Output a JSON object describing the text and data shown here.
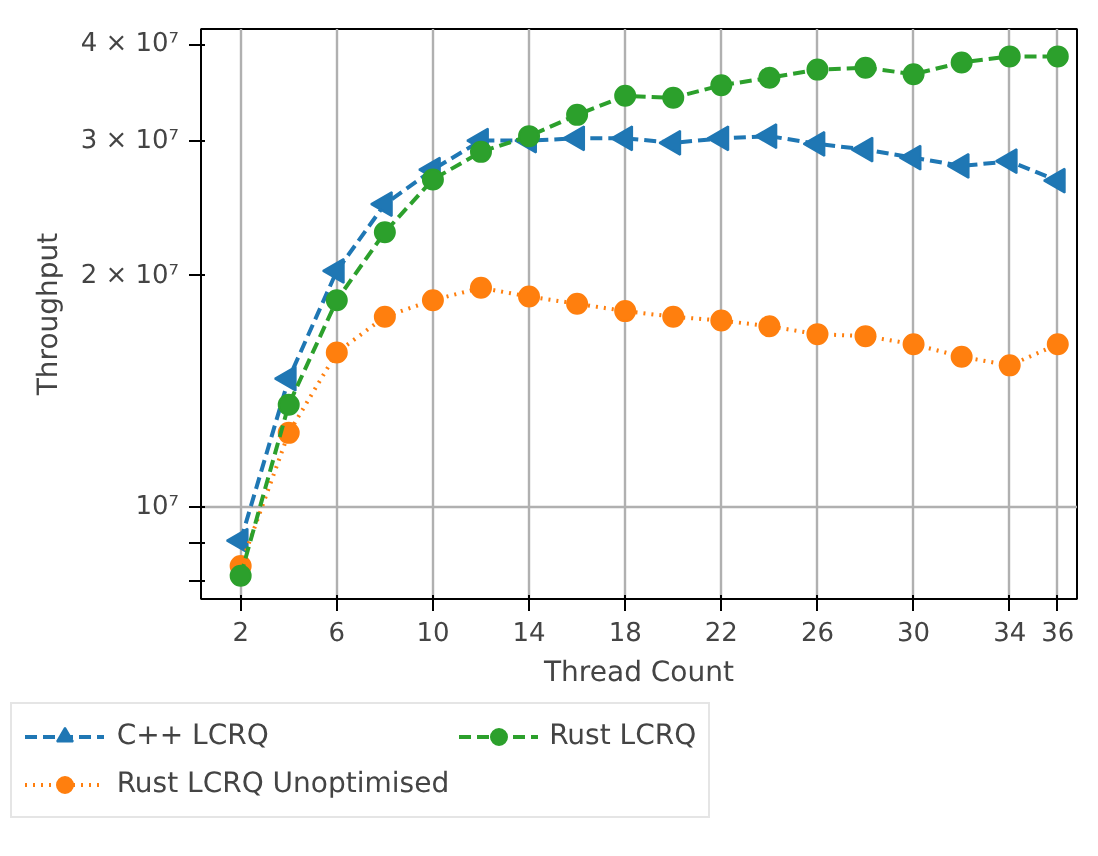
{
  "chart_data": {
    "type": "line",
    "xlabel": "Thread Count",
    "ylabel": "Throughput",
    "log": "y",
    "x": [
      2,
      4,
      6,
      8,
      10,
      12,
      14,
      16,
      18,
      20,
      22,
      24,
      26,
      28,
      30,
      32,
      34,
      36
    ],
    "xlim": [
      0.35,
      36.8
    ],
    "xticks": [
      2,
      6,
      10,
      14,
      18,
      22,
      26,
      30,
      34,
      36
    ],
    "ylim": [
      7600000,
      41900000
    ],
    "yticks": [
      {
        "value": 8000000,
        "label": null
      },
      {
        "value": 9000000,
        "label": null
      },
      {
        "value": 10000000,
        "label": "10⁷"
      },
      {
        "value": 20000000,
        "label": "2 × 10⁷"
      },
      {
        "value": 30000000,
        "label": "3 × 10⁷"
      },
      {
        "value": 40000000,
        "label": "4 × 10⁷"
      }
    ],
    "grid": true,
    "legend": "bottom",
    "series": [
      {
        "name": "C++ LCRQ",
        "color": "#1f77b4",
        "marker": "triangle",
        "line_style": "dashed",
        "values": [
          9050000,
          14700000,
          20300000,
          24800000,
          27500000,
          30000000,
          30000000,
          30200000,
          30200000,
          29800000,
          30200000,
          30400000,
          29700000,
          29200000,
          28500000,
          27800000,
          28200000,
          26600000
        ]
      },
      {
        "name": "Rust LCRQ Unoptimised",
        "color": "#ff7f0e",
        "marker": "circle",
        "line_style": "dotted",
        "values": [
          8390000,
          12500000,
          15900000,
          17700000,
          18600000,
          19300000,
          18800000,
          18400000,
          18000000,
          17700000,
          17500000,
          17200000,
          16800000,
          16700000,
          16300000,
          15700000,
          15300000,
          16300000
        ]
      },
      {
        "name": "Rust LCRQ",
        "color": "#2ca02c",
        "marker": "circle",
        "line_style": "dashed",
        "values": [
          8150000,
          13600000,
          18600000,
          22800000,
          26700000,
          29000000,
          30400000,
          32400000,
          34300000,
          34100000,
          35400000,
          36200000,
          37100000,
          37300000,
          36600000,
          37900000,
          38600000,
          38600000
        ]
      }
    ]
  }
}
